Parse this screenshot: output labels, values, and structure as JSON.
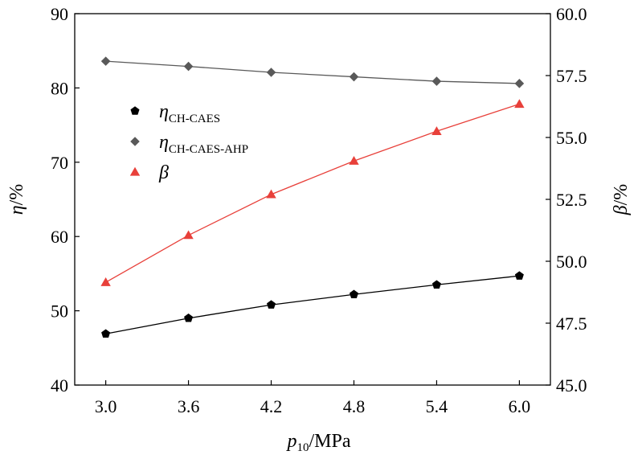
{
  "chart_data": {
    "type": "line",
    "x": [
      3.0,
      3.6,
      4.2,
      4.8,
      5.4,
      6.0
    ],
    "x_tick_labels": [
      "3.0",
      "3.6",
      "4.2",
      "4.8",
      "5.4",
      "6.0"
    ],
    "xlim": [
      2.775,
      6.225
    ],
    "xlabel": {
      "main": "p",
      "sub": "10",
      "unit": "/MPa"
    },
    "y_left": {
      "label_main": "η",
      "label_unit": "/%",
      "ylim": [
        40,
        90
      ],
      "ticks": [
        40,
        50,
        60,
        70,
        80,
        90
      ],
      "tick_labels": [
        "40",
        "50",
        "60",
        "70",
        "80",
        "90"
      ]
    },
    "y_right": {
      "label_main": "β",
      "label_unit": "/%",
      "ylim": [
        45.0,
        60.0
      ],
      "ticks": [
        45.0,
        47.5,
        50.0,
        52.5,
        55.0,
        57.5,
        60.0
      ],
      "tick_labels": [
        "45.0",
        "47.5",
        "50.0",
        "52.5",
        "55.0",
        "57.5",
        "60.0"
      ]
    },
    "series": [
      {
        "name": "η_CH-CAES",
        "legend_main": "η",
        "legend_sub": "CH-CAES",
        "axis": "left",
        "marker": "pentagon",
        "color": "#000000",
        "values": [
          46.9,
          49.0,
          50.8,
          52.2,
          53.5,
          54.7
        ]
      },
      {
        "name": "η_CH-CAES-AHP",
        "legend_main": "η",
        "legend_sub": "CH-CAES-AHP",
        "axis": "left",
        "marker": "diamond",
        "color": "#595959",
        "values": [
          83.6,
          82.9,
          82.1,
          81.5,
          80.9,
          80.6
        ]
      },
      {
        "name": "β",
        "legend_main": "β",
        "legend_sub": "",
        "axis": "right",
        "marker": "triangle",
        "color": "#e8403a",
        "values": [
          49.15,
          51.05,
          52.7,
          54.05,
          55.25,
          56.35
        ]
      }
    ],
    "legend_position": "upper-left",
    "grid": false
  }
}
